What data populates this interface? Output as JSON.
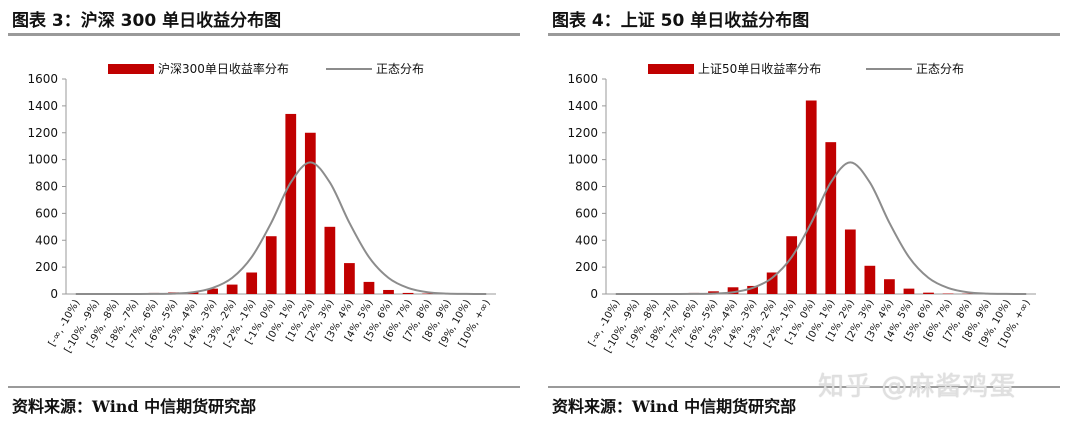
{
  "charts": [
    {
      "title": "图表 3：沪深 300 单日收益分布图",
      "source": "资料来源：Wind 中信期货研究部",
      "legend": {
        "bar": "沪深300单日收益率分布",
        "line": "正态分布"
      }
    },
    {
      "title": "图表 4：上证 50 单日收益分布图",
      "source": "资料来源：Wind 中信期货研究部",
      "legend": {
        "bar": "上证50单日收益率分布",
        "line": "正态分布"
      }
    }
  ],
  "watermark": "知乎 @麻酱鸡蛋",
  "colors": {
    "bar": "#c00000",
    "line": "#8c8c8c",
    "axis": "#9a9a9a"
  },
  "chart_data": [
    {
      "type": "bar",
      "title": "沪深 300 单日收益分布图",
      "categories": [
        "[-∞, -10%)",
        "[-10%, -9%)",
        "[-9%, -8%)",
        "[-8%, -7%)",
        "[-7%, -6%)",
        "[-6%, -5%)",
        "[-5%, -4%)",
        "[-4%, -3%)",
        "[-3%, -2%)",
        "[-2%, -1%)",
        "[-1%, 0%)",
        "[0%, 1%)",
        "[1%, 2%)",
        "[2%, 3%)",
        "[3%, 4%)",
        "[4%, 5%)",
        "[5%, 6%)",
        "[6%, 7%)",
        "[7%, 8%)",
        "[8%, 9%)",
        "[9%, 10%)",
        "[10%, +∞)"
      ],
      "series": [
        {
          "name": "沪深300单日收益率分布",
          "type": "bar",
          "values": [
            0,
            0,
            0,
            5,
            8,
            12,
            15,
            40,
            70,
            160,
            430,
            1340,
            1200,
            500,
            230,
            90,
            30,
            8,
            3,
            2,
            2,
            0
          ]
        },
        {
          "name": "正态分布",
          "type": "line",
          "values": [
            0,
            0,
            0,
            0.1,
            0.6,
            3,
            13,
            45,
            120,
            275,
            530,
            830,
            980,
            830,
            530,
            275,
            120,
            45,
            13,
            3,
            0.6,
            0.1
          ]
        }
      ],
      "yticks": [
        0,
        200,
        400,
        600,
        800,
        1000,
        1200,
        1400,
        1600
      ],
      "ylim": [
        0,
        1600
      ],
      "grid": false,
      "legend_position": "top"
    },
    {
      "type": "bar",
      "title": "上证 50 单日收益分布图",
      "categories": [
        "[-∞, -10%)",
        "[-10%, -9%)",
        "[-9%, -8%)",
        "[-8%, -7%)",
        "[-7%, -6%)",
        "[-6%, -5%)",
        "[-5%, -4%)",
        "[-4%, -3%)",
        "[-3%, -2%)",
        "[-2%, -1%)",
        "[-1%, 0%)",
        "[0%, 1%)",
        "[1%, 2%)",
        "[2%, 3%)",
        "[3%, 4%)",
        "[4%, 5%)",
        "[5%, 6%)",
        "[6%, 7%)",
        "[7%, 8%)",
        "[8%, 9%)",
        "[9%, 10%)",
        "[10%, +∞)"
      ],
      "series": [
        {
          "name": "上证50单日收益率分布",
          "type": "bar",
          "values": [
            0,
            0,
            0,
            5,
            8,
            20,
            50,
            60,
            160,
            430,
            1440,
            1130,
            480,
            210,
            110,
            40,
            10,
            3,
            2,
            1,
            1,
            0
          ]
        },
        {
          "name": "正态分布",
          "type": "line",
          "values": [
            0,
            0,
            0,
            0.1,
            0.6,
            3,
            13,
            45,
            120,
            275,
            530,
            830,
            980,
            830,
            530,
            275,
            120,
            45,
            13,
            3,
            0.6,
            0.1
          ]
        }
      ],
      "yticks": [
        0,
        200,
        400,
        600,
        800,
        1000,
        1200,
        1400,
        1600
      ],
      "ylim": [
        0,
        1600
      ],
      "grid": false,
      "legend_position": "top"
    }
  ]
}
